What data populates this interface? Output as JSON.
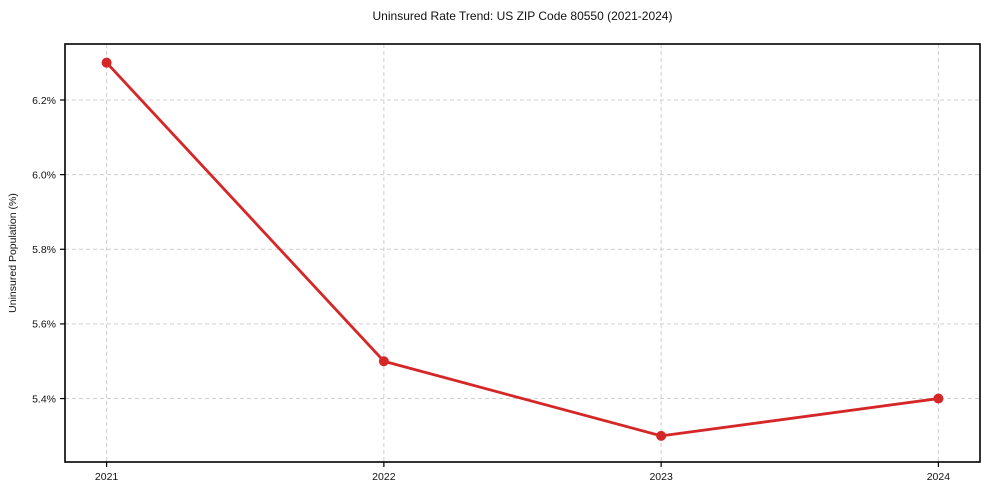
{
  "chart_data": {
    "type": "line",
    "title": "Uninsured Rate Trend: US ZIP Code 80550 (2021-2024)",
    "xlabel": "",
    "ylabel": "Uninsured Population (%)",
    "x": [
      2021,
      2022,
      2023,
      2024
    ],
    "x_tick_labels": [
      "2021",
      "2022",
      "2023",
      "2024"
    ],
    "values": [
      6.3,
      5.5,
      5.3,
      5.4
    ],
    "y_ticks": [
      5.4,
      5.6,
      5.8,
      6.0,
      6.2
    ],
    "y_tick_labels": [
      "5.4%",
      "5.6%",
      "5.8%",
      "6.0%",
      "6.2%"
    ],
    "xlim": [
      2020.85,
      2024.15
    ],
    "ylim": [
      5.23,
      6.35
    ],
    "grid": true,
    "grid_style": "dashed",
    "legend_position": "none",
    "line_color": "#d62728",
    "marker": "circle",
    "grid_color": "#cfcfcf",
    "axis_color": "#000000",
    "background_color": "#ffffff"
  }
}
